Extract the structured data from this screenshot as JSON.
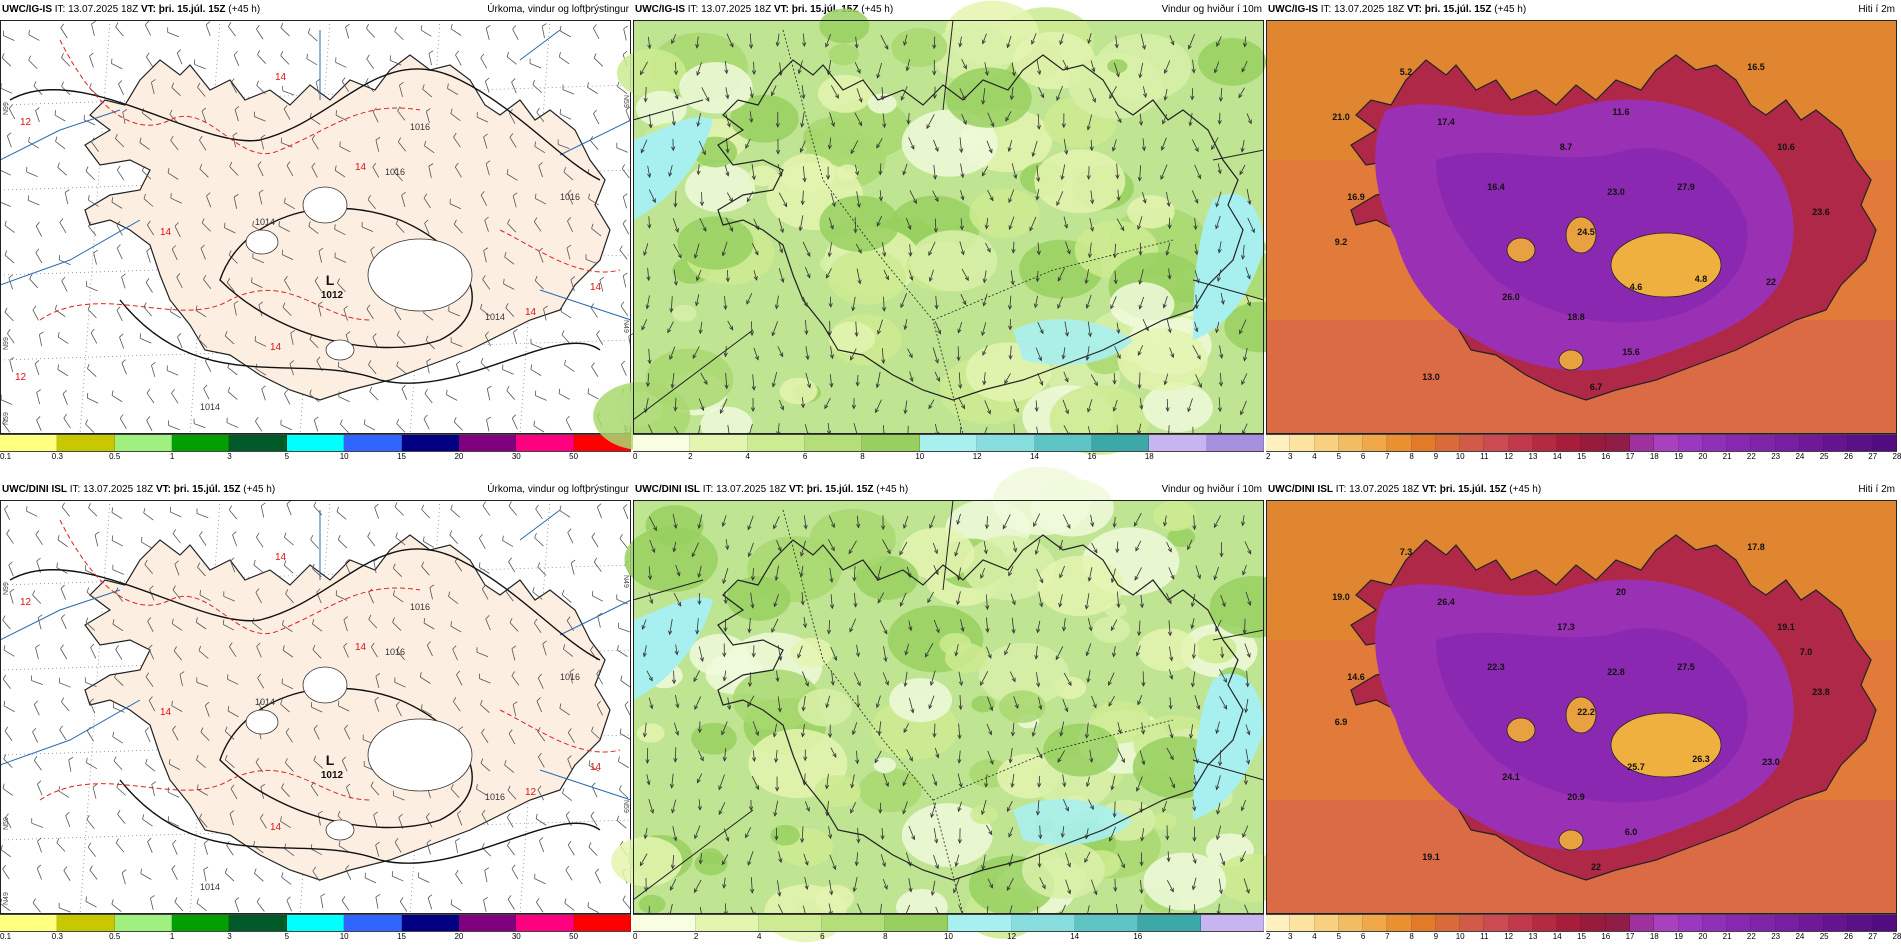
{
  "rows": [
    {
      "model": "UWC/IG-IS",
      "panels": [
        {
          "kind": "precip",
          "it_label": "IT: 13.07.2025 18Z",
          "vt_label": "VT:",
          "vt_value": "þri. 15.júl. 15Z",
          "lead": "(+45 h)",
          "title": "Úrkoma, vindur og loftþrýstingur",
          "colorbar": {
            "colors": [
              "#ffff80",
              "#c8c800",
              "#a0f080",
              "#00a000",
              "#005a28",
              "#00ffff",
              "#3264ff",
              "#000080",
              "#800080",
              "#ff0080",
              "#ff0000"
            ],
            "ticks": [
              "0.1",
              "0.3",
              "0.5",
              "1",
              "3",
              "5",
              "10",
              "15",
              "20",
              "30",
              "50"
            ]
          },
          "low_letter": "L",
          "low_value": "1012",
          "isobar_labels": [
            "1016",
            "1016",
            "1014",
            "1014",
            "1014",
            "1016"
          ],
          "red_labels": [
            "14",
            "14",
            "14",
            "14",
            "14",
            "14",
            "12",
            "12"
          ],
          "lat_labels": [
            "N99",
            "N99",
            "N59",
            "N49",
            "N59",
            "N49"
          ]
        },
        {
          "kind": "wind",
          "it_label": "IT: 13.07.2025 18Z",
          "vt_label": "VT:",
          "vt_value": "þri. 15.júl. 15Z",
          "lead": "(+45 h)",
          "title": "Vindur og hviður í 10m",
          "colorbar": {
            "colors": [
              "#f8ffe0",
              "#e4f5b0",
              "#cdeb90",
              "#b4de78",
              "#98d060",
              "#a8f0f0",
              "#88dede",
              "#5ec4c4",
              "#3ca8a8",
              "#c8b4f0",
              "#a890e0"
            ],
            "ticks": [
              "0",
              "2",
              "4",
              "6",
              "8",
              "10",
              "12",
              "14",
              "16",
              "18"
            ]
          }
        },
        {
          "kind": "temp",
          "it_label": "IT: 13.07.2025 18Z",
          "vt_label": "VT:",
          "vt_value": "þri. 15.júl. 15Z",
          "lead": "(+45 h)",
          "title": "Hiti í 2m",
          "colorbar": {
            "colors": [
              "#fff0c0",
              "#fde3a0",
              "#f8d080",
              "#f4bc60",
              "#f0a848",
              "#ea9030",
              "#e27a2a",
              "#da6a3a",
              "#d45a48",
              "#cc4a52",
              "#c23a4a",
              "#b52a40",
              "#a81e3a",
              "#9a1a3c",
              "#921c48",
              "#a030a0",
              "#a840c0",
              "#9a38c0",
              "#9030b8",
              "#8828b0",
              "#8024a8",
              "#781ea0",
              "#6e1a98",
              "#641490",
              "#5a1088",
              "#500c80"
            ],
            "ticks": [
              "2",
              "3",
              "4",
              "5",
              "6",
              "7",
              "8",
              "9",
              "10",
              "11",
              "12",
              "13",
              "14",
              "15",
              "16",
              "17",
              "18",
              "19",
              "20",
              "21",
              "22",
              "23",
              "24",
              "25",
              "26",
              "27",
              "28"
            ]
          },
          "values": [
            "5.2",
            "16.5",
            "21.0",
            "17.4",
            "11.6",
            "8.7",
            "10.6",
            "16.9",
            "16.4",
            "23.0",
            "27.9",
            "23.6",
            "9.2",
            "24.5",
            "4.6",
            "4.8",
            "22",
            "26.0",
            "18.8",
            "15.6",
            "13.0",
            "6.7"
          ]
        }
      ]
    },
    {
      "model": "UWC/DINI ISL",
      "panels": [
        {
          "kind": "precip",
          "it_label": "IT: 13.07.2025 18Z",
          "vt_label": "VT:",
          "vt_value": "þri. 15.júl. 15Z",
          "lead": "(+45 h)",
          "title": "Úrkoma, vindur og loftþrýstingur",
          "colorbar": {
            "colors": [
              "#ffff80",
              "#c8c800",
              "#a0f080",
              "#00a000",
              "#005a28",
              "#00ffff",
              "#3264ff",
              "#000080",
              "#800080",
              "#ff0080",
              "#ff0000"
            ],
            "ticks": [
              "0.1",
              "0.3",
              "0.5",
              "1",
              "3",
              "5",
              "10",
              "15",
              "20",
              "30",
              "50"
            ]
          },
          "low_letter": "L",
          "low_value": "1012",
          "isobar_labels": [
            "1016",
            "1016",
            "1014",
            "1014",
            "1016",
            "1016"
          ],
          "red_labels": [
            "14",
            "14",
            "14",
            "14",
            "14",
            "12",
            "12"
          ],
          "lat_labels": [
            "N99",
            "N59",
            "N49",
            "N59",
            "N49"
          ]
        },
        {
          "kind": "wind",
          "it_label": "IT: 13.07.2025 18Z",
          "vt_label": "VT:",
          "vt_value": "þri. 15.júl. 15Z",
          "lead": "(+45 h)",
          "title": "Vindur og hviður í 10m",
          "colorbar": {
            "colors": [
              "#f8ffe0",
              "#e4f5b0",
              "#cdeb90",
              "#b4de78",
              "#98d060",
              "#a8f0f0",
              "#88dede",
              "#5ec4c4",
              "#3ca8a8",
              "#c8b4f0"
            ],
            "ticks": [
              "0",
              "2",
              "4",
              "6",
              "8",
              "10",
              "12",
              "14",
              "16"
            ]
          }
        },
        {
          "kind": "temp",
          "it_label": "IT: 13.07.2025 18Z",
          "vt_label": "VT:",
          "vt_value": "þri. 15.júl. 15Z",
          "lead": "(+45 h)",
          "title": "Hiti í 2m",
          "colorbar": {
            "colors": [
              "#fff0c0",
              "#fde3a0",
              "#f8d080",
              "#f4bc60",
              "#f0a848",
              "#ea9030",
              "#e27a2a",
              "#da6a3a",
              "#d45a48",
              "#cc4a52",
              "#c23a4a",
              "#b52a40",
              "#a81e3a",
              "#9a1a3c",
              "#921c48",
              "#a030a0",
              "#a840c0",
              "#9a38c0",
              "#9030b8",
              "#8828b0",
              "#8024a8",
              "#781ea0",
              "#6e1a98",
              "#641490",
              "#5a1088",
              "#500c80"
            ],
            "ticks": [
              "2",
              "3",
              "4",
              "5",
              "6",
              "7",
              "8",
              "9",
              "10",
              "11",
              "12",
              "13",
              "14",
              "15",
              "16",
              "17",
              "18",
              "19",
              "20",
              "21",
              "22",
              "23",
              "24",
              "25",
              "26",
              "27",
              "28"
            ]
          },
          "values": [
            "7.3",
            "17.8",
            "19.0",
            "26.4",
            "20",
            "17.3",
            "19.1",
            "14.6",
            "22.3",
            "22.8",
            "27.5",
            "23.8",
            "6.9",
            "22.2",
            "25.7",
            "26.3",
            "23.0",
            "24.1",
            "20.9",
            "6.0",
            "19.1",
            "22",
            "7.0"
          ]
        }
      ]
    }
  ]
}
